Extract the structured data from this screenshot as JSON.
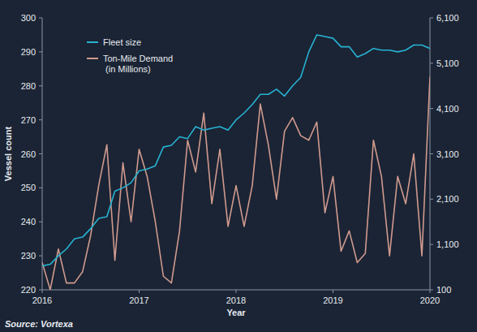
{
  "chart_data": {
    "type": "line",
    "x_label": "Year",
    "y_label": "Vessel count",
    "source": "Source: Vortexa",
    "x": [
      2016,
      2016.083,
      2016.167,
      2016.25,
      2016.333,
      2016.417,
      2016.5,
      2016.583,
      2016.667,
      2016.75,
      2016.833,
      2016.917,
      2017,
      2017.083,
      2017.167,
      2017.25,
      2017.333,
      2017.417,
      2017.5,
      2017.583,
      2017.667,
      2017.75,
      2017.833,
      2017.917,
      2018,
      2018.083,
      2018.167,
      2018.25,
      2018.333,
      2018.417,
      2018.5,
      2018.583,
      2018.667,
      2018.75,
      2018.833,
      2018.917,
      2019,
      2019.083,
      2019.167,
      2019.25,
      2019.333,
      2019.417,
      2019.5,
      2019.583,
      2019.667,
      2019.75,
      2019.833,
      2019.917,
      2020
    ],
    "xlim": [
      2016,
      2020
    ],
    "xticks": [
      2016,
      2017,
      2018,
      2019,
      2020
    ],
    "ylim": [
      220,
      300
    ],
    "yticks": [
      220,
      230,
      240,
      250,
      260,
      270,
      280,
      290,
      300
    ],
    "y2lim": [
      100,
      6100
    ],
    "y2ticks": [
      100,
      {
        "value": 1100,
        "label": "1,100"
      },
      {
        "value": 2100,
        "label": "2,100"
      },
      {
        "value": 3100,
        "label": "3,100"
      },
      {
        "value": 4100,
        "label": "4,100"
      },
      {
        "value": 5100,
        "label": "5,100"
      },
      {
        "value": 6100,
        "label": "6,100"
      }
    ],
    "grid": false,
    "legend": "upper-left",
    "series": [
      {
        "name": "Fleet size",
        "color": "#27b2d3",
        "values": [
          227,
          227.5,
          230,
          232,
          235,
          235.5,
          238,
          241,
          241.5,
          249,
          250,
          251.5,
          255,
          255.5,
          256.5,
          262,
          262.5,
          265,
          264.5,
          268,
          267,
          267.5,
          268,
          267,
          270,
          272,
          274.5,
          277.5,
          277.5,
          279,
          277,
          280,
          282.5,
          290,
          295,
          294.5,
          294,
          291.5,
          291.5,
          288.5,
          289.5,
          291,
          290.5,
          290.5,
          290,
          290.5,
          292,
          292,
          291
        ]
      },
      {
        "name": "Ton-Mile Demand (in Millions)",
        "color": "#cf9a8e",
        "axis": "y2",
        "values": [
          700,
          100,
          1000,
          250,
          250,
          500,
          1300,
          2400,
          3300,
          750,
          2900,
          1600,
          3200,
          2600,
          1600,
          400,
          250,
          1400,
          3400,
          2700,
          4000,
          2000,
          3200,
          1500,
          2400,
          1500,
          2400,
          4200,
          3300,
          2100,
          3600,
          3900,
          3500,
          3400,
          3800,
          1800,
          2600,
          950,
          1400,
          700,
          900,
          3400,
          2600,
          850,
          2600,
          2000,
          3100,
          850,
          4800
        ]
      }
    ]
  }
}
